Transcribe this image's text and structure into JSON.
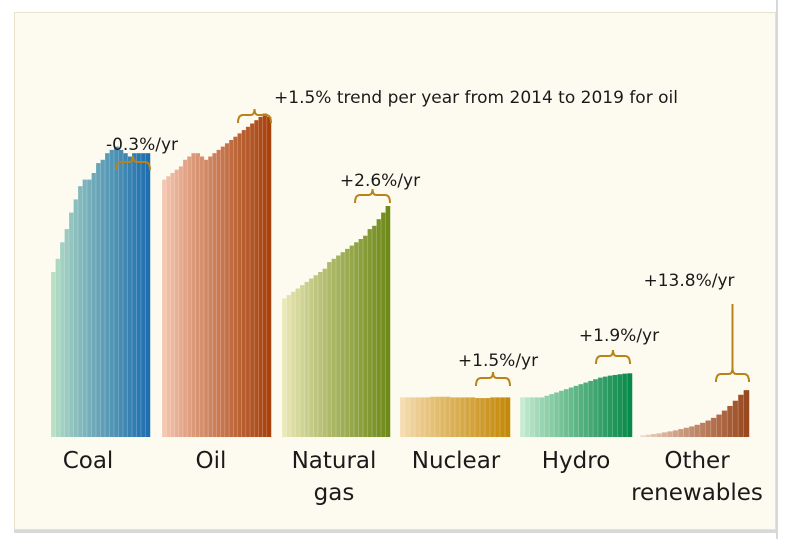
{
  "chart_data": {
    "type": "bar",
    "title": "",
    "xlabel": "",
    "ylabel": "",
    "grid": false,
    "ylim": [
      0,
      100
    ],
    "categories": [
      {
        "name": "Coal",
        "label_lines": [
          "Coal"
        ],
        "annotation": "-0.3%/yr",
        "colors": [
          "#b8e0c4",
          "#1f6fae"
        ],
        "values": [
          50,
          54,
          59,
          63,
          68,
          72,
          76,
          78,
          78,
          80,
          83,
          84,
          86,
          87,
          88,
          87,
          86,
          85,
          86,
          86,
          86,
          86
        ]
      },
      {
        "name": "Oil",
        "label_lines": [
          "Oil"
        ],
        "annotation": "+1.5% trend per year from 2014 to 2019 for oil",
        "colors": [
          "#f6c6b0",
          "#a8420d"
        ],
        "values": [
          78,
          79,
          80,
          81,
          82,
          84,
          85,
          86,
          86,
          85,
          84,
          85,
          86,
          87,
          88,
          89,
          90,
          91,
          92,
          93,
          94,
          95,
          96,
          97,
          98,
          97
        ]
      },
      {
        "name": "Natural gas",
        "label_lines": [
          "Natural",
          "gas"
        ],
        "annotation": "+2.6%/yr",
        "colors": [
          "#ece9b8",
          "#6f8a1a"
        ],
        "values": [
          42,
          43,
          44,
          45,
          46,
          47,
          48,
          49,
          50,
          51,
          53,
          54,
          55,
          56,
          57,
          58,
          59,
          60,
          61,
          63,
          64,
          66,
          68,
          70
        ]
      },
      {
        "name": "Nuclear",
        "label_lines": [
          "Nuclear"
        ],
        "annotation": "+1.5%/yr",
        "colors": [
          "#f6dcb0",
          "#c48a0a"
        ],
        "values": [
          12,
          12,
          12,
          12,
          12,
          12,
          12.2,
          12.2,
          12.2,
          12.2,
          12,
          12,
          12,
          12,
          12,
          11.8,
          11.8,
          11.8,
          12,
          12,
          12,
          12
        ]
      },
      {
        "name": "Hydro renewables",
        "label_lines": [
          "Hydro"
        ],
        "annotation": "+1.9%/yr",
        "colors": [
          "#c6ecd2",
          "#0a8a4a"
        ],
        "values": [
          12,
          12,
          12,
          12,
          12,
          12.5,
          13,
          13.5,
          14,
          14.5,
          15,
          15.5,
          16,
          16.5,
          17,
          17.5,
          18,
          18.3,
          18.6,
          18.8,
          19,
          19.2,
          19.3
        ]
      },
      {
        "name": "Other renewables",
        "label_lines": [
          "Other",
          "renewables"
        ],
        "annotation": "+13.8%/yr",
        "colors": [
          "#f0d8c8",
          "#9a4a20"
        ],
        "values": [
          0.5,
          0.7,
          0.9,
          1.1,
          1.4,
          1.7,
          2.0,
          2.4,
          2.8,
          3.2,
          3.7,
          4.3,
          5.0,
          5.8,
          6.8,
          8.0,
          9.4,
          11.0,
          12.8,
          14.2
        ]
      }
    ]
  }
}
